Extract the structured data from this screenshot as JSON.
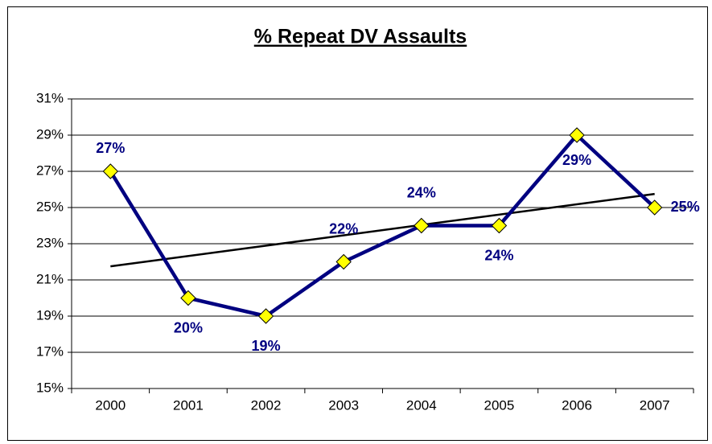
{
  "chart_data": {
    "type": "line",
    "title": "% Repeat DV Assaults",
    "categories": [
      "2000",
      "2001",
      "2002",
      "2003",
      "2004",
      "2005",
      "2006",
      "2007"
    ],
    "values": [
      27,
      20,
      19,
      22,
      24,
      24,
      29,
      25
    ],
    "value_labels": [
      "27%",
      "20%",
      "19%",
      "22%",
      "24%",
      "24%",
      "29%",
      "25%"
    ],
    "color": "#000080",
    "marker_color": "#ffff00",
    "trendline": true,
    "trendline_color": "#000000",
    "ylim": [
      15,
      31
    ],
    "yticks": [
      {
        "value": 15,
        "label": "15%"
      },
      {
        "value": 17,
        "label": "17%"
      },
      {
        "value": 19,
        "label": "19%"
      },
      {
        "value": 21,
        "label": "21%"
      },
      {
        "value": 23,
        "label": "23%"
      },
      {
        "value": 25,
        "label": "25%"
      },
      {
        "value": 27,
        "label": "27%"
      },
      {
        "value": 29,
        "label": "29%"
      },
      {
        "value": 31,
        "label": "31%"
      }
    ],
    "grid": true
  }
}
